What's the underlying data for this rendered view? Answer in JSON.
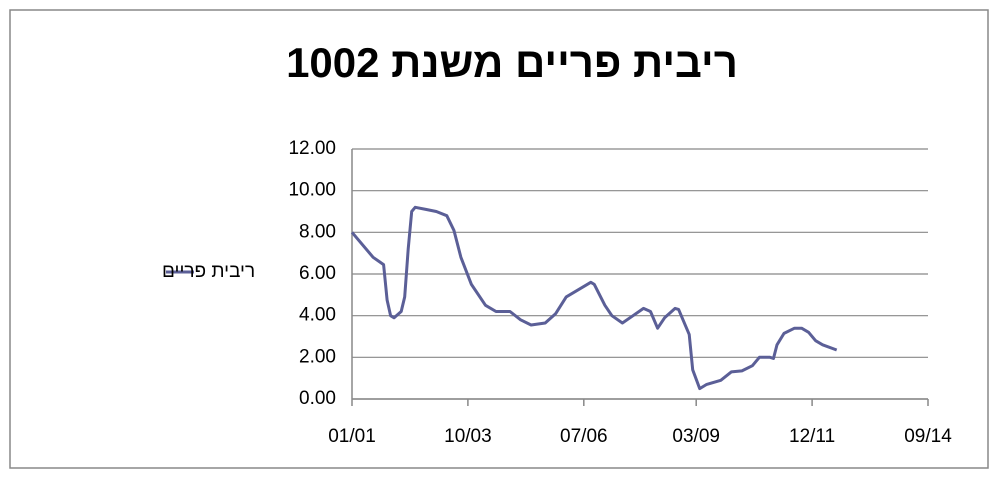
{
  "chart_data": {
    "type": "line",
    "title": "ריבית פריים משנת 1002",
    "x": [
      "01/01",
      "07/01",
      "10/01",
      "11/01",
      "12/01",
      "01/02",
      "03/02",
      "04/02",
      "05/02",
      "06/02",
      "07/02",
      "10/02",
      "01/03",
      "04/03",
      "06/03",
      "08/03",
      "11/03",
      "03/04",
      "06/04",
      "10/04",
      "01/05",
      "04/05",
      "08/05",
      "11/05",
      "02/06",
      "06/06",
      "09/06",
      "10/06",
      "01/07",
      "03/07",
      "06/07",
      "09/07",
      "12/07",
      "02/08",
      "04/08",
      "06/08",
      "09/08",
      "10/08",
      "01/09",
      "02/09",
      "04/09",
      "06/09",
      "10/09",
      "01/10",
      "04/10",
      "07/10",
      "09/10",
      "12/10",
      "01/11",
      "02/11",
      "04/11",
      "07/11",
      "09/11",
      "11/11",
      "01/12",
      "03/12",
      "07/12"
    ],
    "series": [
      {
        "name": "ריבית פריים",
        "color": "#5b5f97",
        "values": [
          8.0,
          6.8,
          6.45,
          4.75,
          4.0,
          3.9,
          4.2,
          4.9,
          7.2,
          9.0,
          9.2,
          9.1,
          9.0,
          8.8,
          8.1,
          6.8,
          5.5,
          4.5,
          4.2,
          4.2,
          3.8,
          3.55,
          3.65,
          4.1,
          4.9,
          5.3,
          5.6,
          5.5,
          4.5,
          4.0,
          3.65,
          4.0,
          4.35,
          4.2,
          3.4,
          3.9,
          4.35,
          4.3,
          3.1,
          1.4,
          0.5,
          0.7,
          0.9,
          1.3,
          1.35,
          1.6,
          2.0,
          2.0,
          1.95,
          2.6,
          3.15,
          3.4,
          3.4,
          3.2,
          2.8,
          2.6,
          2.35
        ]
      }
    ],
    "xlim": [
      "01/01",
      "09/14"
    ],
    "xticks": [
      "01/01",
      "10/03",
      "07/06",
      "03/09",
      "12/11",
      "09/14"
    ],
    "ylim": [
      0,
      12
    ],
    "yticks": [
      {
        "value": 0,
        "label": "0.00"
      },
      {
        "value": 2,
        "label": "2.00"
      },
      {
        "value": 4,
        "label": "4.00"
      },
      {
        "value": 6,
        "label": "6.00"
      },
      {
        "value": 8,
        "label": "8.00"
      },
      {
        "value": 10,
        "label": "10.00"
      },
      {
        "value": 12,
        "label": "12.00"
      }
    ],
    "grid": true,
    "legend": "left"
  }
}
